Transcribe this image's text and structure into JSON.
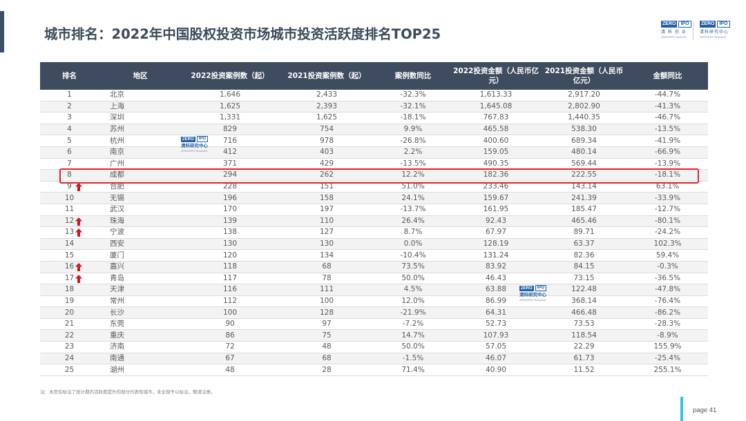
{
  "title": "城市排名：2022年中国股权投资市场城市投资活跃度排名TOP25",
  "logos": {
    "zero": "ZERO",
    "ipo": "IPO",
    "left_cn": "清 科 创 业",
    "left_en": "ZERO2IPO Ventures",
    "right_cn": "清科研究中心",
    "right_en": "ZERO2IPO Research",
    "watermark_cn": "清科研究中心",
    "watermark_en": "ZERO2IPO Research"
  },
  "table": {
    "headers": [
      "排名",
      "地区",
      "2022投资案例数（起）",
      "2021投资案例数（起）",
      "案例数同比",
      "2022投资金额（人民币亿元）",
      "2021投资金额（人民币亿元）",
      "金额同比"
    ],
    "rows": [
      {
        "rank": "1",
        "region": "北京",
        "c2022": "1,646",
        "c2021": "2,433",
        "cyoy": "-32.3%",
        "a2022": "1,613.33",
        "a2021": "2,917.20",
        "ayoy": "-44.7%",
        "up": false
      },
      {
        "rank": "2",
        "region": "上海",
        "c2022": "1,625",
        "c2021": "2,393",
        "cyoy": "-32.1%",
        "a2022": "1,645.08",
        "a2021": "2,802.90",
        "ayoy": "-41.3%",
        "up": false
      },
      {
        "rank": "3",
        "region": "深圳",
        "c2022": "1,331",
        "c2021": "1,625",
        "cyoy": "-18.1%",
        "a2022": "767.83",
        "a2021": "1,440.35",
        "ayoy": "-46.7%",
        "up": false
      },
      {
        "rank": "4",
        "region": "苏州",
        "c2022": "829",
        "c2021": "754",
        "cyoy": "9.9%",
        "a2022": "465.58",
        "a2021": "538.30",
        "ayoy": "-13.5%",
        "up": false
      },
      {
        "rank": "5",
        "region": "杭州",
        "c2022": "716",
        "c2021": "978",
        "cyoy": "-26.8%",
        "a2022": "400.60",
        "a2021": "689.34",
        "ayoy": "-41.9%",
        "up": false
      },
      {
        "rank": "6",
        "region": "南京",
        "c2022": "412",
        "c2021": "403",
        "cyoy": "2.2%",
        "a2022": "159.05",
        "a2021": "480.14",
        "ayoy": "-66.9%",
        "up": false
      },
      {
        "rank": "7",
        "region": "广州",
        "c2022": "371",
        "c2021": "429",
        "cyoy": "-13.5%",
        "a2022": "490.35",
        "a2021": "569.44",
        "ayoy": "-13.9%",
        "up": false
      },
      {
        "rank": "8",
        "region": "成都",
        "c2022": "294",
        "c2021": "262",
        "cyoy": "12.2%",
        "a2022": "182.36",
        "a2021": "222.55",
        "ayoy": "-18.1%",
        "up": false
      },
      {
        "rank": "9",
        "region": "合肥",
        "c2022": "228",
        "c2021": "151",
        "cyoy": "51.0%",
        "a2022": "233.46",
        "a2021": "143.14",
        "ayoy": "63.1%",
        "up": true
      },
      {
        "rank": "10",
        "region": "无锡",
        "c2022": "196",
        "c2021": "158",
        "cyoy": "24.1%",
        "a2022": "159.67",
        "a2021": "241.39",
        "ayoy": "-33.9%",
        "up": false
      },
      {
        "rank": "11",
        "region": "武汉",
        "c2022": "170",
        "c2021": "197",
        "cyoy": "-13.7%",
        "a2022": "161.95",
        "a2021": "185.47",
        "ayoy": "-12.7%",
        "up": false
      },
      {
        "rank": "12",
        "region": "珠海",
        "c2022": "139",
        "c2021": "110",
        "cyoy": "26.4%",
        "a2022": "92.43",
        "a2021": "465.46",
        "ayoy": "-80.1%",
        "up": true
      },
      {
        "rank": "13",
        "region": "宁波",
        "c2022": "138",
        "c2021": "127",
        "cyoy": "8.7%",
        "a2022": "67.97",
        "a2021": "89.71",
        "ayoy": "-24.2%",
        "up": true
      },
      {
        "rank": "14",
        "region": "西安",
        "c2022": "130",
        "c2021": "130",
        "cyoy": "0.0%",
        "a2022": "128.19",
        "a2021": "63.37",
        "ayoy": "102.3%",
        "up": false
      },
      {
        "rank": "15",
        "region": "厦门",
        "c2022": "120",
        "c2021": "134",
        "cyoy": "-10.4%",
        "a2022": "131.24",
        "a2021": "82.36",
        "ayoy": "59.4%",
        "up": false
      },
      {
        "rank": "16",
        "region": "嘉兴",
        "c2022": "118",
        "c2021": "68",
        "cyoy": "73.5%",
        "a2022": "83.92",
        "a2021": "84.15",
        "ayoy": "-0.3%",
        "up": true
      },
      {
        "rank": "17",
        "region": "青岛",
        "c2022": "117",
        "c2021": "78",
        "cyoy": "50.0%",
        "a2022": "46.43",
        "a2021": "73.15",
        "ayoy": "-36.5%",
        "up": true
      },
      {
        "rank": "18",
        "region": "天津",
        "c2022": "116",
        "c2021": "111",
        "cyoy": "4.5%",
        "a2022": "63.88",
        "a2021": "122.48",
        "ayoy": "-47.8%",
        "up": false
      },
      {
        "rank": "19",
        "region": "常州",
        "c2022": "112",
        "c2021": "100",
        "cyoy": "12.0%",
        "a2022": "86.99",
        "a2021": "368.14",
        "ayoy": "-76.4%",
        "up": false
      },
      {
        "rank": "20",
        "region": "长沙",
        "c2022": "100",
        "c2021": "128",
        "cyoy": "-21.9%",
        "a2022": "64.31",
        "a2021": "466.48",
        "ayoy": "-86.2%",
        "up": false
      },
      {
        "rank": "21",
        "region": "东莞",
        "c2022": "90",
        "c2021": "97",
        "cyoy": "-7.2%",
        "a2022": "52.73",
        "a2021": "73.53",
        "ayoy": "-28.3%",
        "up": false
      },
      {
        "rank": "22",
        "region": "重庆",
        "c2022": "86",
        "c2021": "75",
        "cyoy": "14.7%",
        "a2022": "107.93",
        "a2021": "118.54",
        "ayoy": "-8.9%",
        "up": false
      },
      {
        "rank": "23",
        "region": "济南",
        "c2022": "72",
        "c2021": "48",
        "cyoy": "50.0%",
        "a2022": "57.05",
        "a2021": "22.29",
        "ayoy": "155.9%",
        "up": false
      },
      {
        "rank": "24",
        "region": "南通",
        "c2022": "67",
        "c2021": "68",
        "cyoy": "-1.5%",
        "a2022": "46.07",
        "a2021": "61.73",
        "ayoy": "-25.4%",
        "up": false
      },
      {
        "rank": "25",
        "region": "湖州",
        "c2022": "48",
        "c2021": "28",
        "cyoy": "71.4%",
        "a2022": "40.90",
        "a2021": "11.52",
        "ayoy": "255.1%",
        "up": false
      }
    ]
  },
  "highlight_rank": "8",
  "footnote": "注：本页仅标注了统计期内活跃度提升的部分代表性城市，未全部予以标注，敬请注意。",
  "page_label": "page  41",
  "colors": {
    "header_bg": "#3f4b5e",
    "highlight_border": "#e8202a",
    "arrow": "#d8141c",
    "page_accent": "#36c5d8",
    "logo_blue": "#2560a8"
  }
}
